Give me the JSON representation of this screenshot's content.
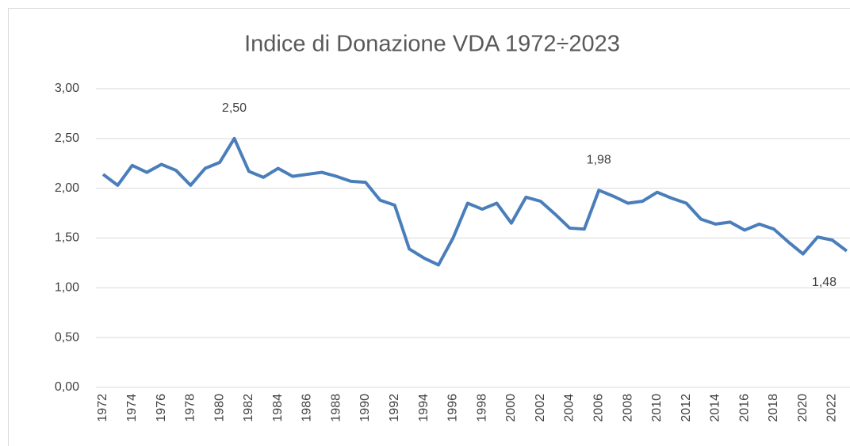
{
  "chart_data": {
    "type": "line",
    "title": "Indice di Donazione VDA 1972÷2023",
    "categories": [
      "1972",
      null,
      "1974",
      null,
      "1976",
      null,
      "1978",
      null,
      "1980",
      null,
      "1982",
      null,
      "1984",
      null,
      "1986",
      null,
      "1988",
      null,
      "1990",
      null,
      "1992",
      null,
      "1994",
      null,
      "1996",
      null,
      "1998",
      null,
      "2000",
      null,
      "2002",
      null,
      "2004",
      null,
      "2006",
      null,
      "2008",
      null,
      "2010",
      null,
      "2012",
      null,
      "2014",
      null,
      "2016",
      null,
      "2018",
      null,
      "2020",
      null,
      "2022",
      null
    ],
    "series": [
      {
        "name": "Indice di Donazione",
        "color": "#4a7ebb",
        "values": [
          2.14,
          2.03,
          2.23,
          2.16,
          2.24,
          2.18,
          2.03,
          2.2,
          2.26,
          2.5,
          2.17,
          2.11,
          2.2,
          2.12,
          2.14,
          2.16,
          2.12,
          2.07,
          2.06,
          1.88,
          1.83,
          1.39,
          1.3,
          1.23,
          1.5,
          1.85,
          1.79,
          1.85,
          1.65,
          1.91,
          1.87,
          1.74,
          1.6,
          1.59,
          1.98,
          1.92,
          1.85,
          1.87,
          1.96,
          1.9,
          1.85,
          1.69,
          1.64,
          1.66,
          1.58,
          1.64,
          1.59,
          1.46,
          1.34,
          1.51,
          1.48,
          1.37
        ],
        "value_labels": [
          null,
          null,
          null,
          null,
          null,
          null,
          null,
          null,
          null,
          "2,50",
          null,
          null,
          null,
          null,
          null,
          null,
          null,
          null,
          null,
          null,
          null,
          null,
          null,
          null,
          null,
          null,
          null,
          null,
          null,
          null,
          null,
          null,
          null,
          null,
          "1,98",
          null,
          null,
          null,
          null,
          null,
          null,
          null,
          null,
          null,
          null,
          null,
          null,
          null,
          null,
          null,
          "1,48",
          null
        ]
      }
    ],
    "ylim": [
      0,
      3
    ],
    "yticks": [
      {
        "value": 0,
        "label": "0,00"
      },
      {
        "value": 0.5,
        "label": "0,50"
      },
      {
        "value": 1,
        "label": "1,00"
      },
      {
        "value": 1.5,
        "label": "1,50"
      },
      {
        "value": 2,
        "label": "2,00"
      },
      {
        "value": 2.5,
        "label": "2,50"
      },
      {
        "value": 3,
        "label": "3,00"
      }
    ],
    "grid": true
  }
}
